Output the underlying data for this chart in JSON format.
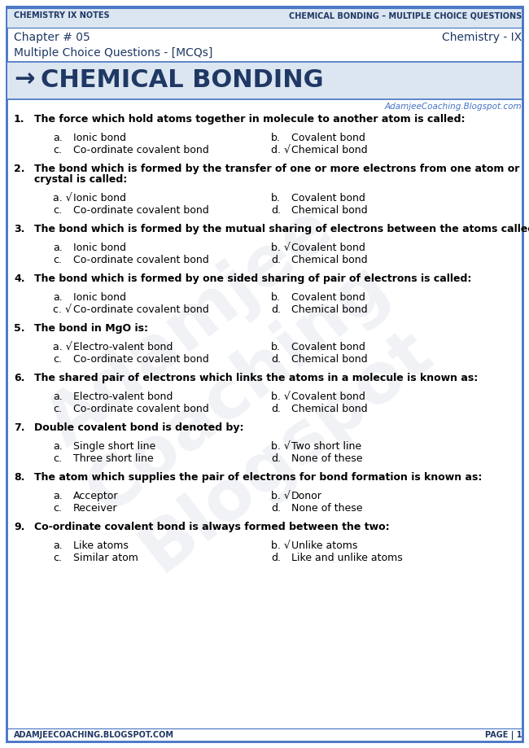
{
  "header_left": "Chemistry IX Notes",
  "header_right": "Chemical Bonding – Multiple Choice Questions",
  "chapter": "Chapter # 05",
  "subject": "Chemistry - IX",
  "mcq_label": "Multiple Choice Questions - [MCQs]",
  "title_arrow": "→",
  "title": "CHEMICAL BONDING",
  "website": "AdamjeeCoaching.Blogspot.com",
  "footer_left": "AdamjeeCoaching.Blogspot.com",
  "footer_right": "Page | 1",
  "questions": [
    {
      "num": "1.",
      "text": "The force which hold atoms together in molecule to another atom is called:",
      "two_lines": false,
      "options": [
        {
          "label": "a.",
          "check": false,
          "text": "Ionic bond"
        },
        {
          "label": "b.",
          "check": false,
          "text": "Covalent bond"
        },
        {
          "label": "c.",
          "check": false,
          "text": "Co-ordinate covalent bond"
        },
        {
          "label": "d.",
          "check": true,
          "text": "Chemical bond"
        }
      ]
    },
    {
      "num": "2.",
      "text": "The bond which is formed by the transfer of one or more electrons from one atom or crystal is called:",
      "two_lines": true,
      "line1": "The bond which is formed by the transfer of one or more electrons from one atom or",
      "line2": "crystal is called:",
      "options": [
        {
          "label": "a.",
          "check": true,
          "text": "Ionic bond"
        },
        {
          "label": "b.",
          "check": false,
          "text": "Covalent bond"
        },
        {
          "label": "c.",
          "check": false,
          "text": "Co-ordinate covalent bond"
        },
        {
          "label": "d.",
          "check": false,
          "text": "Chemical bond"
        }
      ]
    },
    {
      "num": "3.",
      "text": "The bond which is formed by the mutual sharing of electrons between the atoms called:",
      "two_lines": false,
      "options": [
        {
          "label": "a.",
          "check": false,
          "text": "Ionic bond"
        },
        {
          "label": "b.",
          "check": true,
          "text": "Covalent bond"
        },
        {
          "label": "c.",
          "check": false,
          "text": "Co-ordinate covalent bond"
        },
        {
          "label": "d.",
          "check": false,
          "text": "Chemical bond"
        }
      ]
    },
    {
      "num": "4.",
      "text": "The bond which is formed by one sided sharing of pair of electrons is called:",
      "two_lines": false,
      "options": [
        {
          "label": "a.",
          "check": false,
          "text": "Ionic bond"
        },
        {
          "label": "b.",
          "check": false,
          "text": "Covalent bond"
        },
        {
          "label": "c.",
          "check": true,
          "text": "Co-ordinate covalent bond"
        },
        {
          "label": "d.",
          "check": false,
          "text": "Chemical bond"
        }
      ]
    },
    {
      "num": "5.",
      "text": "The bond in MgO is:",
      "two_lines": false,
      "options": [
        {
          "label": "a.",
          "check": true,
          "text": "Electro-valent bond"
        },
        {
          "label": "b.",
          "check": false,
          "text": "Covalent bond"
        },
        {
          "label": "c.",
          "check": false,
          "text": "Co-ordinate covalent bond"
        },
        {
          "label": "d.",
          "check": false,
          "text": "Chemical bond"
        }
      ]
    },
    {
      "num": "6.",
      "text": "The shared pair of electrons which links the atoms in a molecule is known as:",
      "two_lines": false,
      "options": [
        {
          "label": "a.",
          "check": false,
          "text": "Electro-valent bond"
        },
        {
          "label": "b.",
          "check": true,
          "text": "Covalent bond"
        },
        {
          "label": "c.",
          "check": false,
          "text": "Co-ordinate covalent bond"
        },
        {
          "label": "d.",
          "check": false,
          "text": "Chemical bond"
        }
      ]
    },
    {
      "num": "7.",
      "text": "Double covalent bond is denoted by:",
      "two_lines": false,
      "options": [
        {
          "label": "a.",
          "check": false,
          "text": "Single short line"
        },
        {
          "label": "b.",
          "check": true,
          "text": "Two short line"
        },
        {
          "label": "c.",
          "check": false,
          "text": "Three short line"
        },
        {
          "label": "d.",
          "check": false,
          "text": "None of these"
        }
      ]
    },
    {
      "num": "8.",
      "text": "The atom which supplies the pair of electrons for bond formation is known as:",
      "two_lines": false,
      "options": [
        {
          "label": "a.",
          "check": false,
          "text": "Acceptor"
        },
        {
          "label": "b.",
          "check": true,
          "text": "Donor"
        },
        {
          "label": "c.",
          "check": false,
          "text": "Receiver"
        },
        {
          "label": "d.",
          "check": false,
          "text": "None of these"
        }
      ]
    },
    {
      "num": "9.",
      "text": "Co-ordinate covalent bond is always formed between the two:",
      "two_lines": false,
      "options": [
        {
          "label": "a.",
          "check": false,
          "text": "Like atoms"
        },
        {
          "label": "b.",
          "check": true,
          "text": "Unlike atoms"
        },
        {
          "label": "c.",
          "check": false,
          "text": "Similar atom"
        },
        {
          "label": "d.",
          "check": false,
          "text": "Like and unlike atoms"
        }
      ]
    }
  ],
  "bg_color": "#ffffff",
  "border_color": "#4472c4",
  "header_color": "#1f3864",
  "title_color": "#1f3864",
  "text_color": "#1a1a2e",
  "question_color": "#000000",
  "website_color": "#4472c4",
  "header_bg": "#dce6f1",
  "title_bg": "#dce6f1",
  "check_color": "#000000"
}
